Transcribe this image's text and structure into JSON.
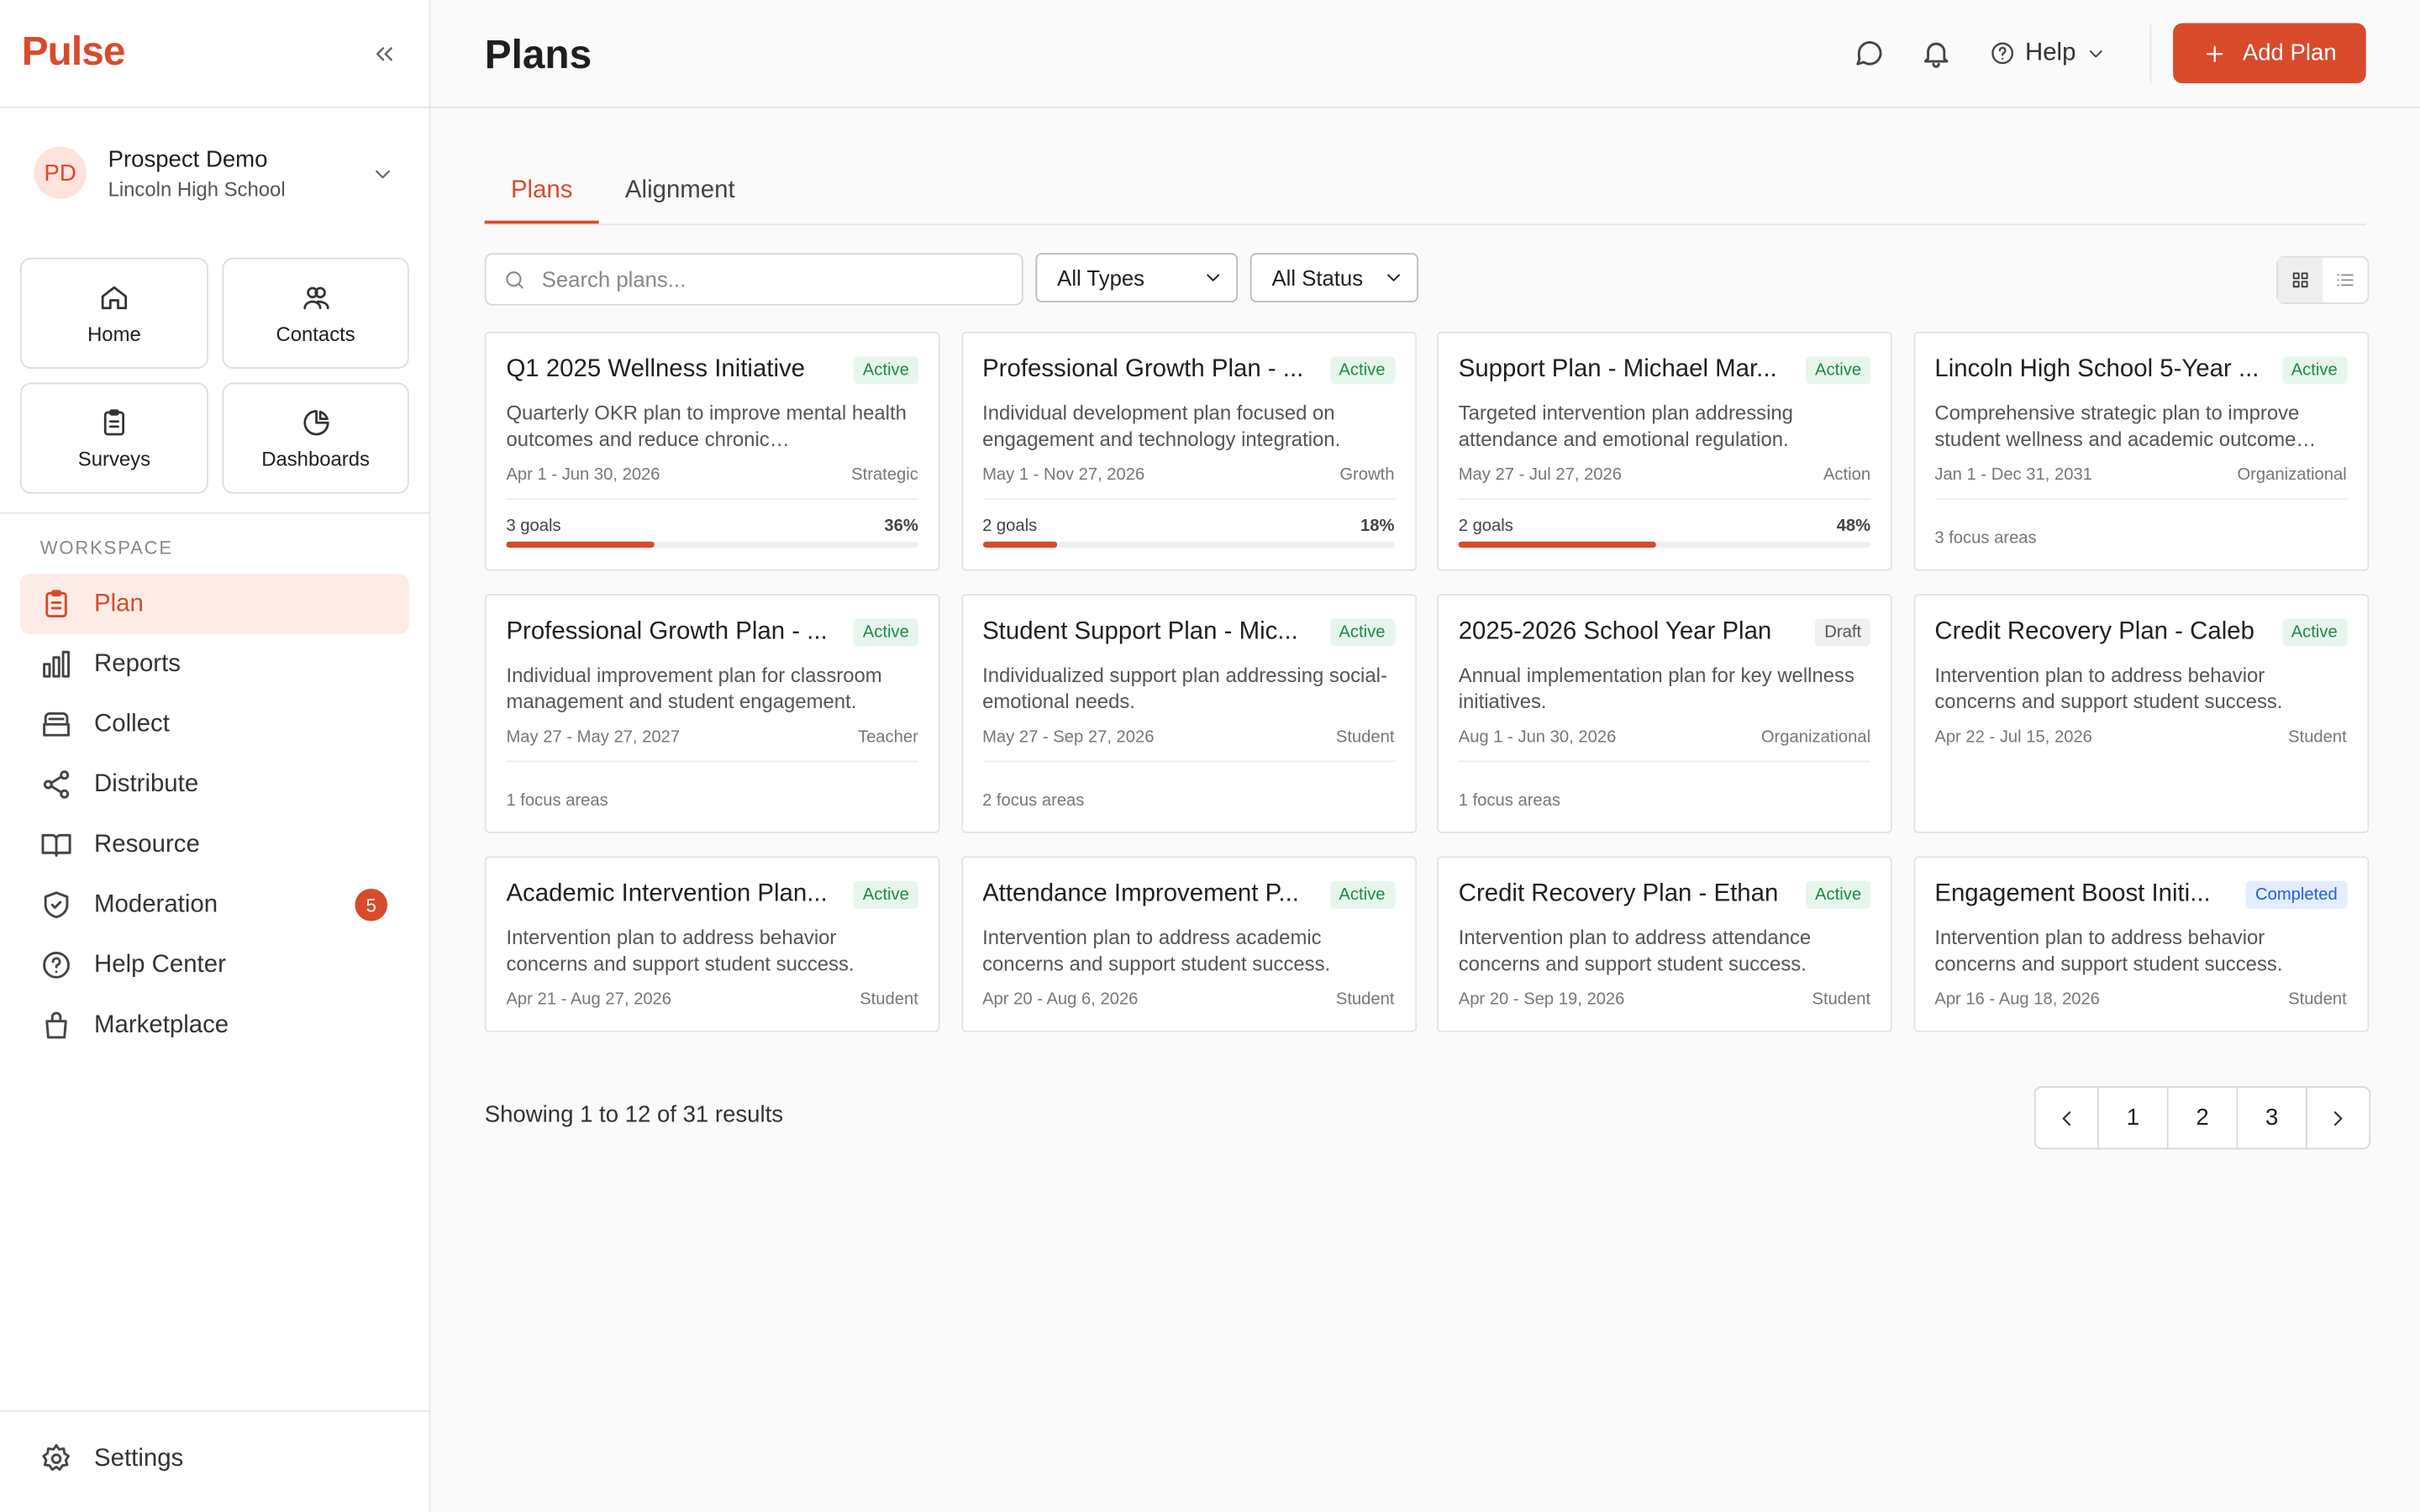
{
  "brand": "Pulse",
  "user": {
    "initials": "PD",
    "name": "Prospect Demo",
    "org": "Lincoln High School"
  },
  "quick_links": [
    "Home",
    "Contacts",
    "Surveys",
    "Dashboards"
  ],
  "workspace": {
    "label": "WORKSPACE",
    "items": [
      {
        "label": "Plan",
        "active": true
      },
      {
        "label": "Reports"
      },
      {
        "label": "Collect"
      },
      {
        "label": "Distribute"
      },
      {
        "label": "Resource"
      },
      {
        "label": "Moderation",
        "badge": 5
      },
      {
        "label": "Help Center"
      },
      {
        "label": "Marketplace"
      }
    ]
  },
  "settings": "Settings",
  "header": {
    "title": "Plans",
    "help": "Help",
    "add": "Add Plan"
  },
  "tabs": [
    {
      "label": "Plans",
      "active": true
    },
    {
      "label": "Alignment"
    }
  ],
  "search_placeholder": "Search plans...",
  "filters": [
    "All Types",
    "All Status"
  ],
  "cards": [
    {
      "title": "Q1 2025 Wellness Initiative",
      "status": "Active",
      "description": "Quarterly OKR plan to improve mental health outcomes and reduce chronic…",
      "dates": "Apr 1 - Jun 30, 2026",
      "type": "Strategic",
      "goals": "3 goals",
      "progress": {
        "value": 36,
        "label": "36%"
      }
    },
    {
      "title": "Professional Growth Plan - ...",
      "status": "Active",
      "description": "Individual development plan focused on engagement and technology integration.",
      "dates": "May 1 - Nov 27, 2026",
      "type": "Growth",
      "goals": "2 goals",
      "progress": {
        "value": 18,
        "label": "18%"
      }
    },
    {
      "title": "Support Plan - Michael Mar...",
      "status": "Active",
      "description": "Targeted intervention plan addressing attendance and emotional regulation.",
      "dates": "May 27 - Jul 27, 2026",
      "type": "Action",
      "goals": "2 goals",
      "progress": {
        "value": 48,
        "label": "48%"
      }
    },
    {
      "title": "Lincoln High School 5-Year ...",
      "status": "Active",
      "description": "Comprehensive strategic plan to improve student wellness and academic outcome…",
      "dates": "Jan 1 - Dec 31, 2031",
      "type": "Organizational",
      "focus": "3 focus areas"
    },
    {
      "title": "Professional Growth Plan - ...",
      "status": "Active",
      "description": "Individual improvement plan for classroom management and student engagement.",
      "dates": "May 27 - May 27, 2027",
      "type": "Teacher",
      "focus": "1 focus areas"
    },
    {
      "title": "Student Support Plan - Mic...",
      "status": "Active",
      "description": "Individualized support plan addressing social-emotional needs.",
      "dates": "May 27 - Sep 27, 2026",
      "type": "Student",
      "focus": "2 focus areas"
    },
    {
      "title": "2025-2026 School Year Plan",
      "status": "Draft",
      "description": "Annual implementation plan for key wellness initiatives.",
      "dates": "Aug 1 - Jun 30, 2026",
      "type": "Organizational",
      "focus": "1 focus areas"
    },
    {
      "title": "Credit Recovery Plan - Caleb",
      "status": "Active",
      "description": "Intervention plan to address behavior concerns and support student success.",
      "dates": "Apr 22 - Jul 15, 2026",
      "type": "Student"
    },
    {
      "title": "Academic Intervention Plan...",
      "status": "Active",
      "description": "Intervention plan to address behavior concerns and support student success.",
      "dates": "Apr 21 - Aug 27, 2026",
      "type": "Student"
    },
    {
      "title": "Attendance Improvement P...",
      "status": "Active",
      "description": "Intervention plan to address academic concerns and support student success.",
      "dates": "Apr 20 - Aug 6, 2026",
      "type": "Student"
    },
    {
      "title": "Credit Recovery Plan - Ethan",
      "status": "Active",
      "description": "Intervention plan to address attendance concerns and support student success.",
      "dates": "Apr 20 - Sep 19, 2026",
      "type": "Student"
    },
    {
      "title": "Engagement Boost Initi...",
      "status": "Completed",
      "description": "Intervention plan to address behavior concerns and support student success.",
      "dates": "Apr 16 - Aug 18, 2026",
      "type": "Student"
    }
  ],
  "results": "Showing 1 to 12 of 31 results",
  "pages": [
    1,
    2,
    3
  ]
}
